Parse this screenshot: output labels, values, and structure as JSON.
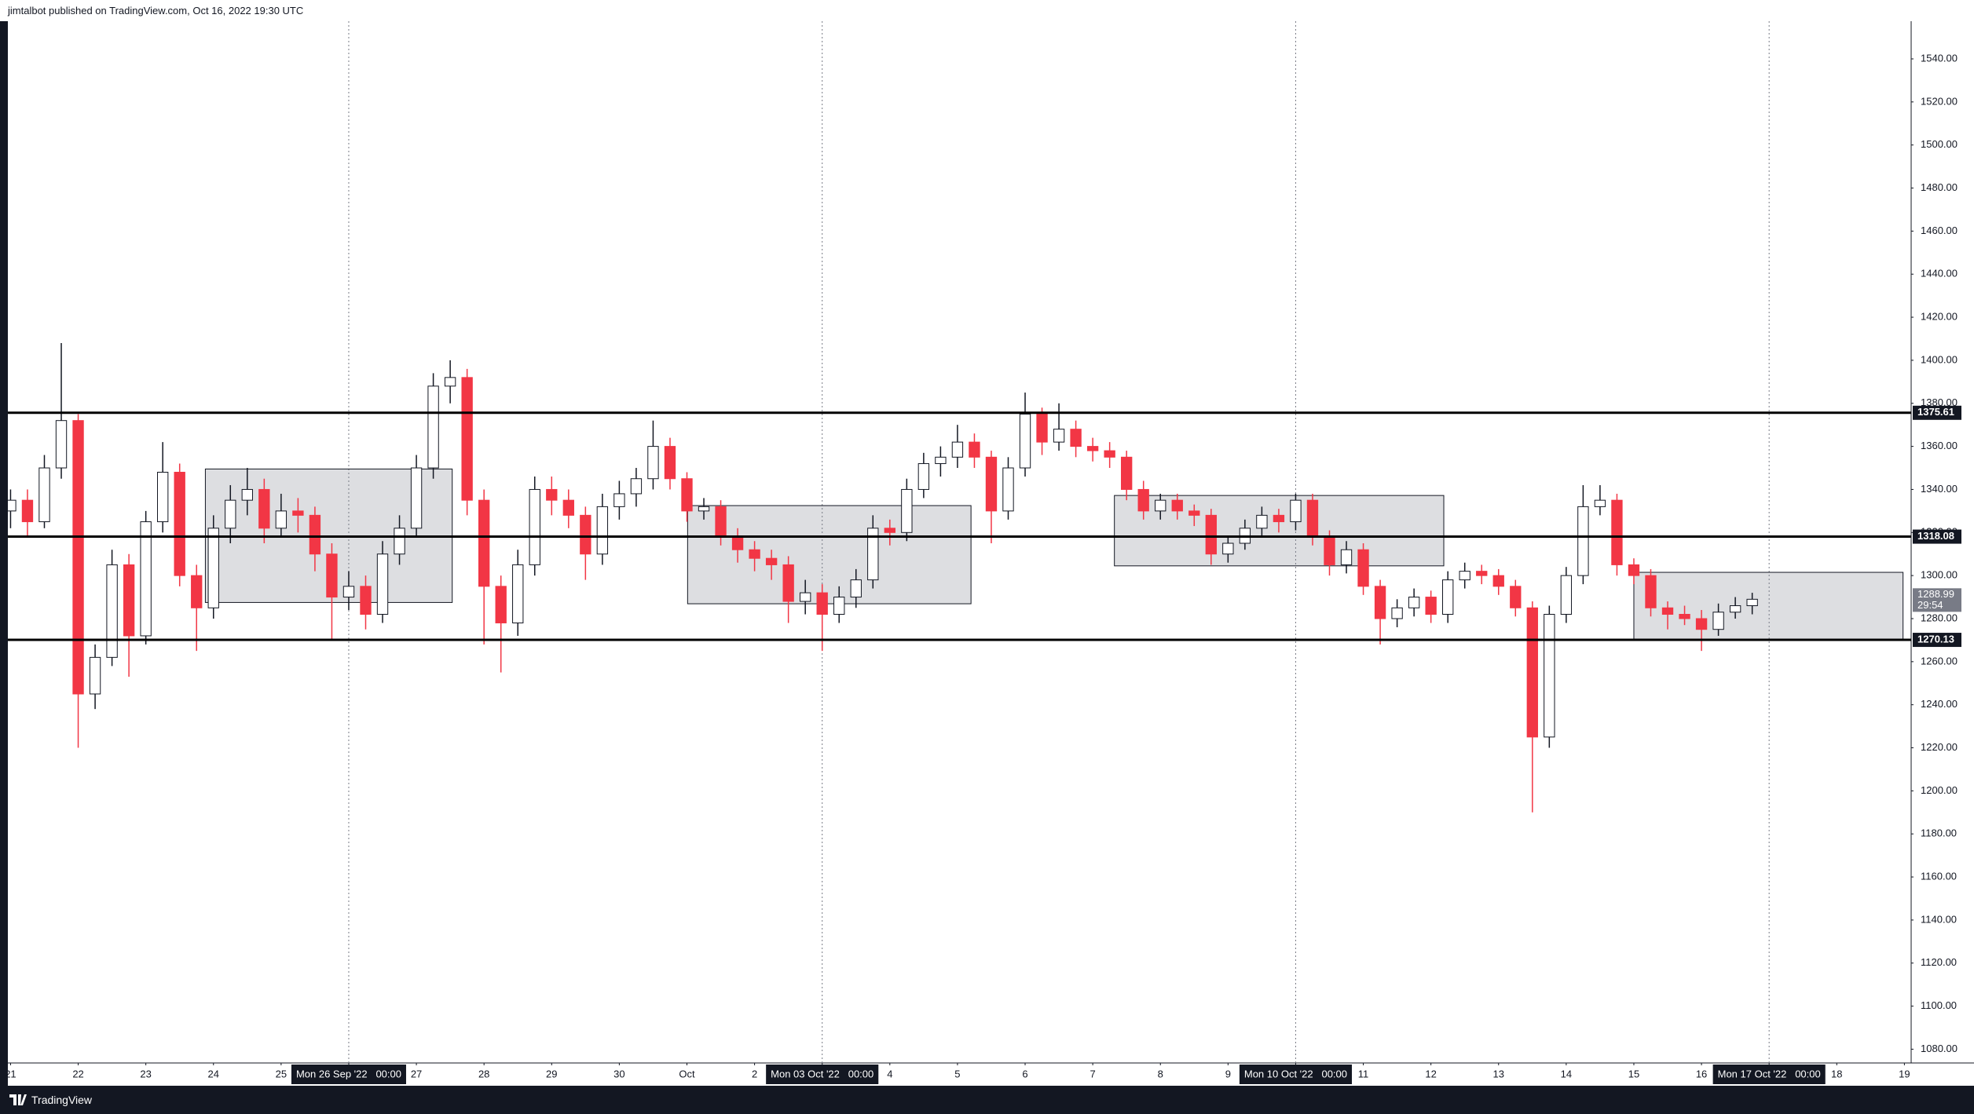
{
  "header": {
    "text": "jimtalbot published on TradingView.com, Oct 16, 2022 19:30 UTC"
  },
  "footer": {
    "brand": "TradingView"
  },
  "chart_data": {
    "type": "candlestick",
    "up_color": "#ffffff",
    "down_color": "#f23645",
    "outline_color": "#131722",
    "candles": [
      [
        0,
        1330,
        1340,
        1322,
        1335
      ],
      [
        0.25,
        1335,
        1340,
        1318,
        1325
      ],
      [
        0.5,
        1325,
        1356,
        1322,
        1350
      ],
      [
        0.75,
        1350,
        1408,
        1345,
        1372
      ],
      [
        1,
        1372,
        1375,
        1220,
        1245
      ],
      [
        1.25,
        1245,
        1268,
        1238,
        1262
      ],
      [
        1.5,
        1262,
        1312,
        1258,
        1305
      ],
      [
        1.75,
        1305,
        1310,
        1253,
        1272
      ],
      [
        2,
        1272,
        1330,
        1268,
        1325
      ],
      [
        2.25,
        1325,
        1362,
        1320,
        1348
      ],
      [
        2.5,
        1348,
        1352,
        1295,
        1300
      ],
      [
        2.75,
        1300,
        1305,
        1265,
        1285
      ],
      [
        3,
        1285,
        1328,
        1280,
        1322
      ],
      [
        3.25,
        1322,
        1342,
        1315,
        1335
      ],
      [
        3.5,
        1335,
        1350,
        1328,
        1340
      ],
      [
        3.75,
        1340,
        1345,
        1315,
        1322
      ],
      [
        4,
        1322,
        1338,
        1318,
        1330
      ],
      [
        4.25,
        1330,
        1336,
        1320,
        1328
      ],
      [
        4.5,
        1328,
        1332,
        1302,
        1310
      ],
      [
        4.75,
        1310,
        1315,
        1270,
        1290
      ],
      [
        5,
        1290,
        1302,
        1284,
        1295
      ],
      [
        5.25,
        1295,
        1300,
        1275,
        1282
      ],
      [
        5.5,
        1282,
        1316,
        1278,
        1310
      ],
      [
        5.75,
        1310,
        1328,
        1305,
        1322
      ],
      [
        6,
        1322,
        1356,
        1318,
        1350
      ],
      [
        6.25,
        1350,
        1394,
        1345,
        1388
      ],
      [
        6.5,
        1388,
        1400,
        1380,
        1392
      ],
      [
        6.75,
        1392,
        1396,
        1328,
        1335
      ],
      [
        7,
        1335,
        1340,
        1268,
        1295
      ],
      [
        7.25,
        1295,
        1300,
        1255,
        1278
      ],
      [
        7.5,
        1278,
        1312,
        1272,
        1305
      ],
      [
        7.75,
        1305,
        1346,
        1300,
        1340
      ],
      [
        8,
        1340,
        1346,
        1328,
        1335
      ],
      [
        8.25,
        1335,
        1340,
        1322,
        1328
      ],
      [
        8.5,
        1328,
        1332,
        1298,
        1310
      ],
      [
        8.75,
        1310,
        1338,
        1305,
        1332
      ],
      [
        9,
        1332,
        1344,
        1326,
        1338
      ],
      [
        9.25,
        1338,
        1350,
        1332,
        1345
      ],
      [
        9.5,
        1345,
        1372,
        1340,
        1360
      ],
      [
        9.75,
        1360,
        1364,
        1340,
        1345
      ],
      [
        10,
        1345,
        1348,
        1325,
        1330
      ],
      [
        10.25,
        1330,
        1336,
        1326,
        1332
      ],
      [
        10.5,
        1332,
        1335,
        1314,
        1318
      ],
      [
        10.75,
        1318,
        1322,
        1306,
        1312
      ],
      [
        11,
        1312,
        1316,
        1302,
        1308
      ],
      [
        11.25,
        1308,
        1312,
        1298,
        1305
      ],
      [
        11.5,
        1305,
        1309,
        1278,
        1288
      ],
      [
        11.75,
        1288,
        1298,
        1282,
        1292
      ],
      [
        12,
        1292,
        1296,
        1265,
        1282
      ],
      [
        12.25,
        1282,
        1295,
        1278,
        1290
      ],
      [
        12.5,
        1290,
        1303,
        1285,
        1298
      ],
      [
        12.75,
        1298,
        1328,
        1294,
        1322
      ],
      [
        13,
        1322,
        1326,
        1314,
        1320
      ],
      [
        13.25,
        1320,
        1345,
        1316,
        1340
      ],
      [
        13.5,
        1340,
        1357,
        1336,
        1352
      ],
      [
        13.75,
        1352,
        1360,
        1346,
        1355
      ],
      [
        14,
        1355,
        1370,
        1350,
        1362
      ],
      [
        14.25,
        1362,
        1366,
        1350,
        1355
      ],
      [
        14.5,
        1355,
        1358,
        1315,
        1330
      ],
      [
        14.75,
        1330,
        1355,
        1326,
        1350
      ],
      [
        15,
        1350,
        1385,
        1346,
        1375
      ],
      [
        15.25,
        1375,
        1378,
        1356,
        1362
      ],
      [
        15.5,
        1362,
        1380,
        1358,
        1368
      ],
      [
        15.75,
        1368,
        1372,
        1355,
        1360
      ],
      [
        16,
        1360,
        1364,
        1353,
        1358
      ],
      [
        16.25,
        1358,
        1362,
        1350,
        1355
      ],
      [
        16.5,
        1355,
        1358,
        1335,
        1340
      ],
      [
        16.75,
        1340,
        1344,
        1326,
        1330
      ],
      [
        17,
        1330,
        1338,
        1326,
        1335
      ],
      [
        17.25,
        1335,
        1338,
        1326,
        1330
      ],
      [
        17.5,
        1330,
        1333,
        1323,
        1328
      ],
      [
        17.75,
        1328,
        1331,
        1305,
        1310
      ],
      [
        18,
        1310,
        1318,
        1306,
        1315
      ],
      [
        18.25,
        1315,
        1326,
        1312,
        1322
      ],
      [
        18.5,
        1322,
        1332,
        1318,
        1328
      ],
      [
        18.75,
        1328,
        1331,
        1320,
        1325
      ],
      [
        19,
        1325,
        1338,
        1321,
        1335
      ],
      [
        19.25,
        1335,
        1338,
        1314,
        1318
      ],
      [
        19.5,
        1318,
        1321,
        1300,
        1305
      ],
      [
        19.75,
        1305,
        1316,
        1301,
        1312
      ],
      [
        20,
        1312,
        1315,
        1291,
        1295
      ],
      [
        20.25,
        1295,
        1298,
        1268,
        1280
      ],
      [
        20.5,
        1280,
        1289,
        1276,
        1285
      ],
      [
        20.75,
        1285,
        1294,
        1281,
        1290
      ],
      [
        21,
        1290,
        1293,
        1278,
        1282
      ],
      [
        21.25,
        1282,
        1302,
        1278,
        1298
      ],
      [
        21.5,
        1298,
        1306,
        1294,
        1302
      ],
      [
        21.75,
        1302,
        1305,
        1296,
        1300
      ],
      [
        22,
        1300,
        1303,
        1291,
        1295
      ],
      [
        22.25,
        1295,
        1298,
        1281,
        1285
      ],
      [
        22.5,
        1285,
        1288,
        1190,
        1225
      ],
      [
        22.75,
        1225,
        1286,
        1220,
        1282
      ],
      [
        23,
        1282,
        1304,
        1278,
        1300
      ],
      [
        23.25,
        1300,
        1342,
        1296,
        1332
      ],
      [
        23.5,
        1332,
        1342,
        1328,
        1335
      ],
      [
        23.75,
        1335,
        1338,
        1300,
        1305
      ],
      [
        24,
        1305,
        1308,
        1296,
        1300
      ],
      [
        24.25,
        1300,
        1303,
        1281,
        1285
      ],
      [
        24.5,
        1285,
        1288,
        1275,
        1282
      ],
      [
        24.75,
        1282,
        1286,
        1277,
        1280
      ],
      [
        25,
        1280,
        1284,
        1265,
        1275
      ],
      [
        25.25,
        1275,
        1287,
        1272,
        1283
      ],
      [
        25.5,
        1283,
        1290,
        1280,
        1286
      ],
      [
        25.75,
        1286,
        1292,
        1282,
        1288.99
      ]
    ],
    "xlim": [
      -0.04,
      28.1
    ],
    "xticks": [
      {
        "value": 0,
        "label": "21"
      },
      {
        "value": 1,
        "label": "22"
      },
      {
        "value": 2,
        "label": "23"
      },
      {
        "value": 3,
        "label": "24"
      },
      {
        "value": 4,
        "label": "25"
      },
      {
        "value": 5,
        "label": "Mon 26 Sep '22   00:00",
        "highlight": true
      },
      {
        "value": 6,
        "label": "27"
      },
      {
        "value": 7,
        "label": "28"
      },
      {
        "value": 8,
        "label": "29"
      },
      {
        "value": 9,
        "label": "30"
      },
      {
        "value": 10,
        "label": "Oct"
      },
      {
        "value": 11,
        "label": "2"
      },
      {
        "value": 12,
        "label": "Mon 03 Oct '22   00:00",
        "highlight": true
      },
      {
        "value": 13,
        "label": "4"
      },
      {
        "value": 14,
        "label": "5"
      },
      {
        "value": 15,
        "label": "6"
      },
      {
        "value": 16,
        "label": "7"
      },
      {
        "value": 17,
        "label": "8"
      },
      {
        "value": 18,
        "label": "9"
      },
      {
        "value": 19,
        "label": "Mon 10 Oct '22   00:00",
        "highlight": true
      },
      {
        "value": 20,
        "label": "11"
      },
      {
        "value": 21,
        "label": "12"
      },
      {
        "value": 22,
        "label": "13"
      },
      {
        "value": 23,
        "label": "14"
      },
      {
        "value": 24,
        "label": "15"
      },
      {
        "value": 25,
        "label": "16"
      },
      {
        "value": 26,
        "label": "Mon 17 Oct '22   00:00",
        "highlight": true
      },
      {
        "value": 27,
        "label": "18"
      },
      {
        "value": 28,
        "label": "19"
      }
    ],
    "ylim": [
      1073.6,
      1557.5
    ],
    "yticks": [
      {
        "value": 1080,
        "label": "1080.00"
      },
      {
        "value": 1100,
        "label": "1100.00"
      },
      {
        "value": 1120,
        "label": "1120.00"
      },
      {
        "value": 1140,
        "label": "1140.00"
      },
      {
        "value": 1160,
        "label": "1160.00"
      },
      {
        "value": 1180,
        "label": "1180.00"
      },
      {
        "value": 1200,
        "label": "1200.00"
      },
      {
        "value": 1220,
        "label": "1220.00"
      },
      {
        "value": 1240,
        "label": "1240.00"
      },
      {
        "value": 1260,
        "label": "1260.00"
      },
      {
        "value": 1280,
        "label": "1280.00"
      },
      {
        "value": 1300,
        "label": "1300.00"
      },
      {
        "value": 1320,
        "label": "1320.00"
      },
      {
        "value": 1340,
        "label": "1340.00"
      },
      {
        "value": 1360,
        "label": "1360.00"
      },
      {
        "value": 1380,
        "label": "1380.00"
      },
      {
        "value": 1400,
        "label": "1400.00"
      },
      {
        "value": 1420,
        "label": "1420.00"
      },
      {
        "value": 1440,
        "label": "1440.00"
      },
      {
        "value": 1460,
        "label": "1460.00"
      },
      {
        "value": 1480,
        "label": "1480.00"
      },
      {
        "value": 1500,
        "label": "1500.00"
      },
      {
        "value": 1520,
        "label": "1520.00"
      },
      {
        "value": 1540,
        "label": "1540.00"
      }
    ],
    "hlines": [
      1375.61,
      1318.08,
      1270.13
    ],
    "zones": [
      {
        "x": [
          2.88,
          6.53
        ],
        "y": [
          1287.5,
          1349.5
        ]
      },
      {
        "x": [
          10.01,
          14.2
        ],
        "y": [
          1286.9,
          1332.5
        ]
      },
      {
        "x": [
          16.32,
          21.19
        ],
        "y": [
          1304.5,
          1337.2
        ]
      },
      {
        "x": [
          24.0,
          27.98
        ],
        "y": [
          1270.0,
          1301.5
        ]
      }
    ],
    "last_price": {
      "value": 1288.99,
      "countdown": "29:54"
    }
  }
}
